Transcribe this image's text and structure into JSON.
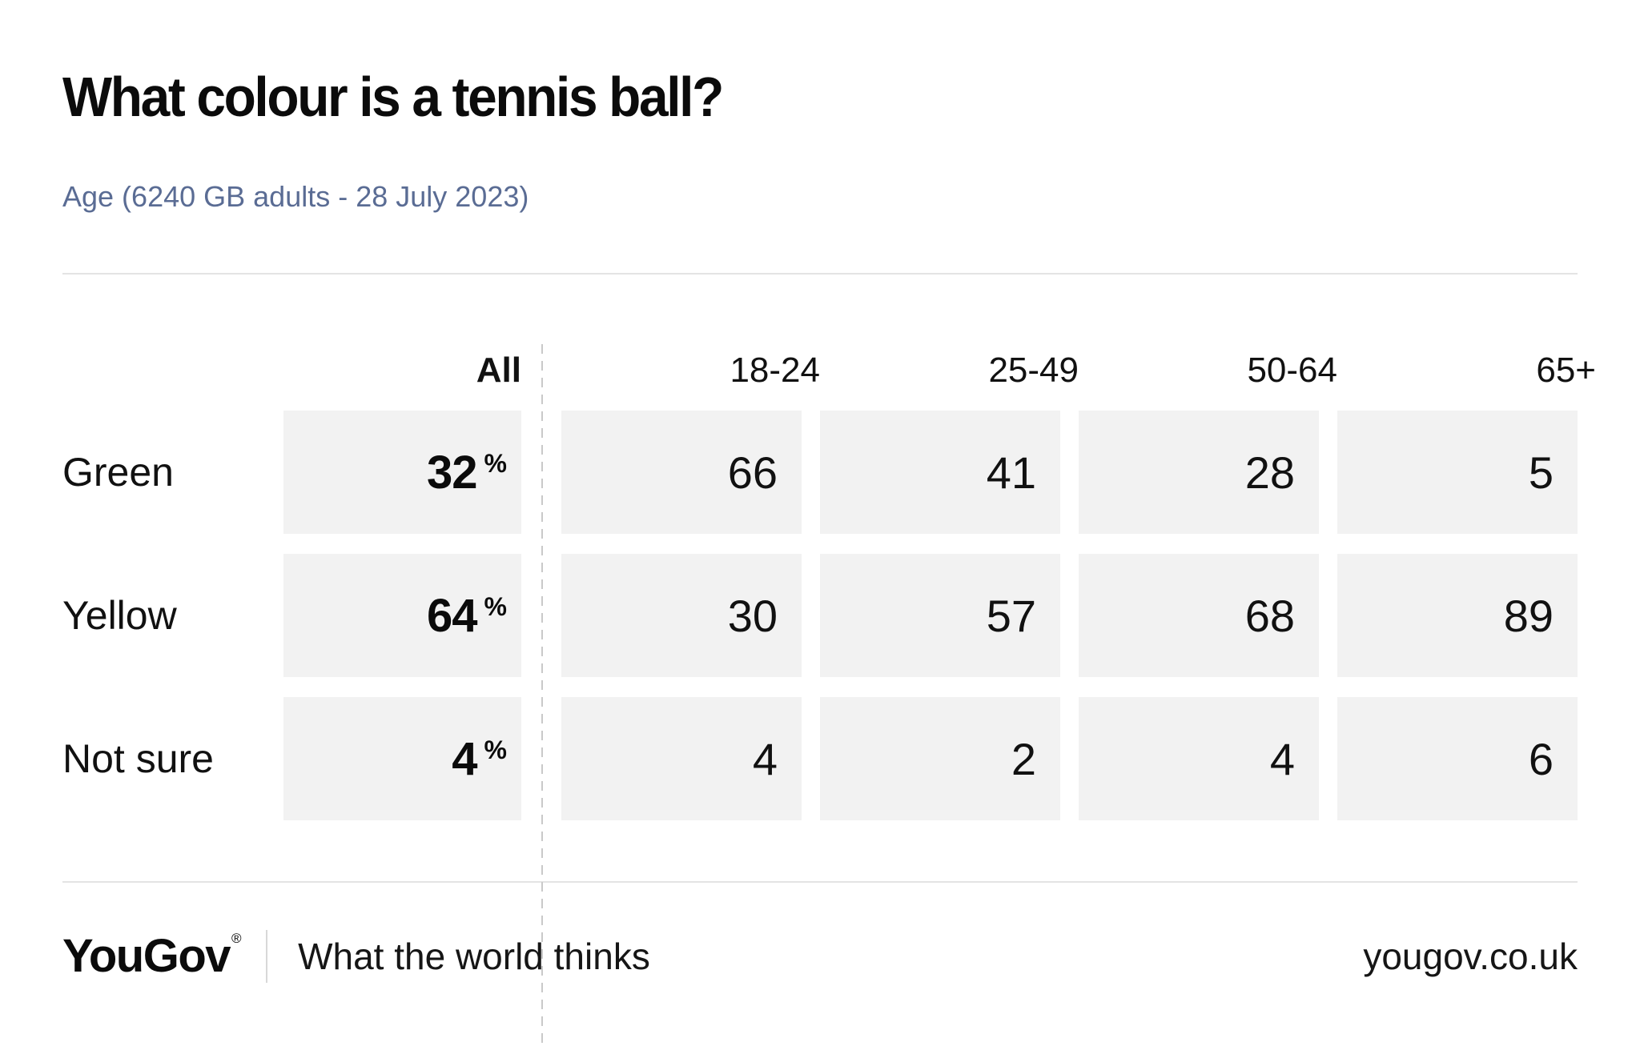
{
  "title": "What colour is a tennis ball?",
  "subtitle": "Age (6240 GB adults - 28 July 2023)",
  "table": {
    "group_label": "All",
    "unit": "%",
    "columns": [
      "18-24",
      "25-49",
      "50-64",
      "65+"
    ],
    "rows": [
      {
        "label": "Green",
        "all": "32",
        "values": [
          "66",
          "41",
          "28",
          "5"
        ]
      },
      {
        "label": "Yellow",
        "all": "64",
        "values": [
          "30",
          "57",
          "68",
          "89"
        ]
      },
      {
        "label": "Not sure",
        "all": "4",
        "values": [
          "4",
          "2",
          "4",
          "6"
        ]
      }
    ]
  },
  "footer": {
    "logo": "YouGov",
    "registered_mark": "®",
    "tagline": "What the world thinks",
    "site": "yougov.co.uk"
  },
  "colors": {
    "background": "#ffffff",
    "text": "#0b0b0b",
    "subtitle_accent": "#5a6c94",
    "cell_background": "#f2f2f2",
    "rule": "#e4e4e4",
    "dashed_divider": "#c9c9c9",
    "footer_divider": "#d8d8d8"
  },
  "chart_data": {
    "type": "table",
    "title": "What colour is a tennis ball?",
    "subtitle": "Age (6240 GB adults - 28 July 2023)",
    "sample_size": 6240,
    "date": "28 July 2023",
    "columns": [
      "All",
      "18-24",
      "25-49",
      "50-64",
      "65+"
    ],
    "row_labels": [
      "Green",
      "Yellow",
      "Not sure"
    ],
    "values_percent": [
      [
        32,
        66,
        41,
        28,
        5
      ],
      [
        64,
        30,
        57,
        68,
        89
      ],
      [
        4,
        4,
        2,
        4,
        6
      ]
    ],
    "unit": "%"
  }
}
